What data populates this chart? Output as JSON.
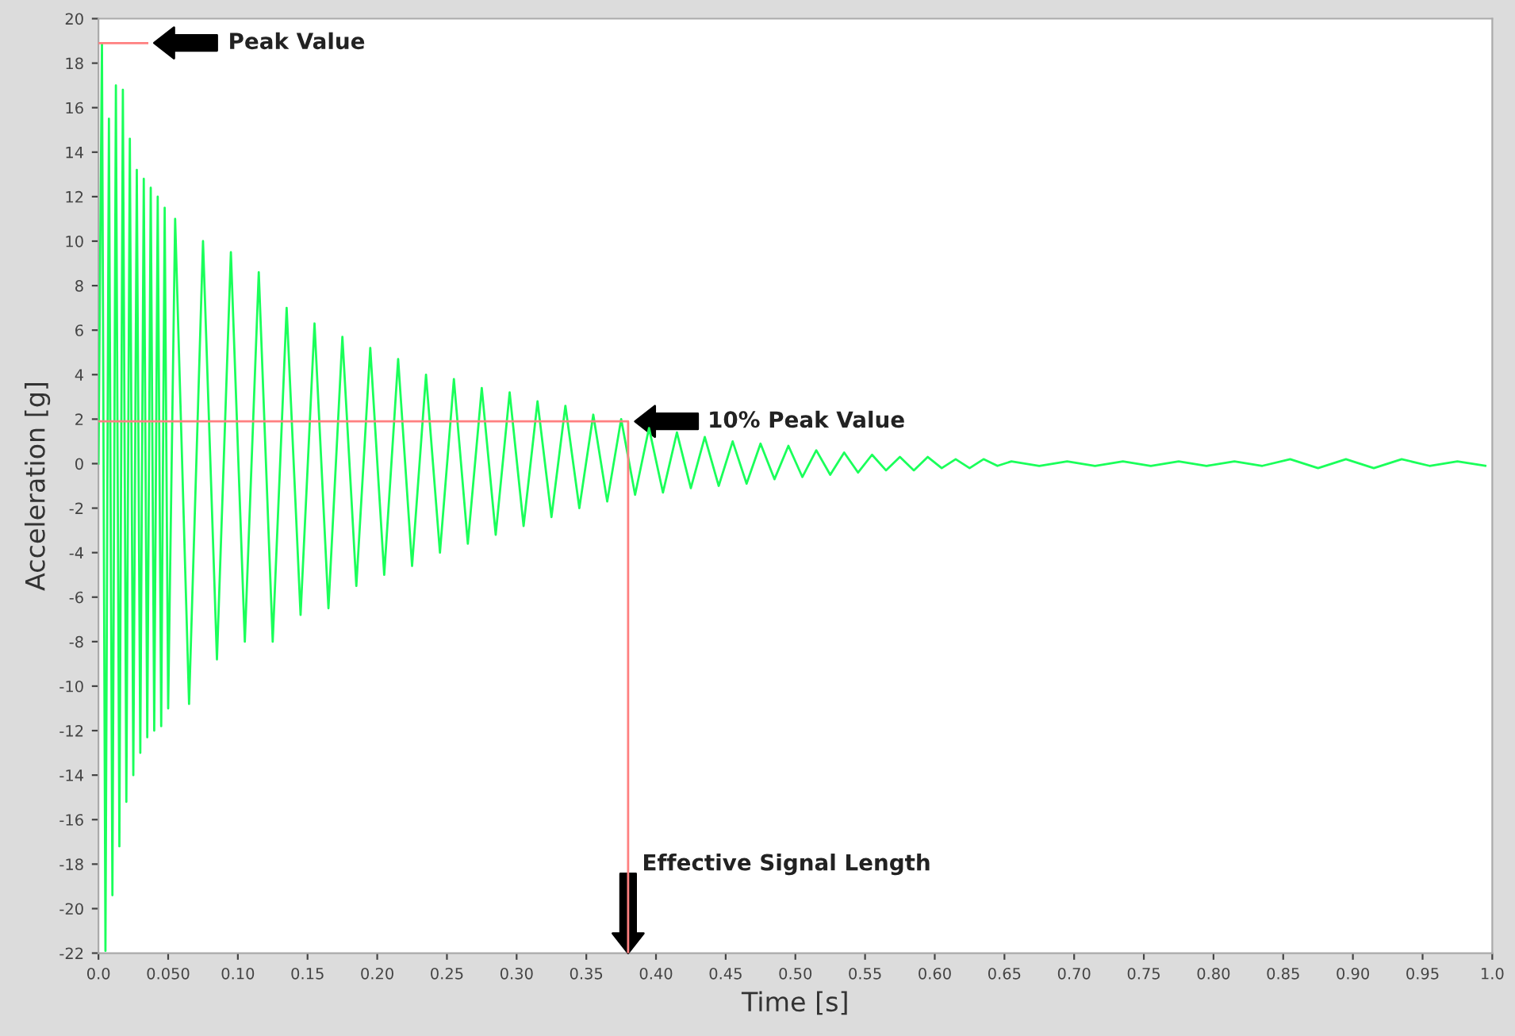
{
  "chart_data": {
    "type": "line",
    "xlabel": "Time [s]",
    "ylabel": "Acceleration [g]",
    "xlim": [
      0,
      1.0
    ],
    "ylim": [
      -22,
      20
    ],
    "xticks": [
      {
        "value": 0,
        "label": "0.0"
      },
      {
        "value": 0.05,
        "label": "0.050"
      },
      {
        "value": 0.1,
        "label": "0.10"
      },
      {
        "value": 0.15,
        "label": "0.15"
      },
      {
        "value": 0.2,
        "label": "0.20"
      },
      {
        "value": 0.25,
        "label": "0.25"
      },
      {
        "value": 0.3,
        "label": "0.30"
      },
      {
        "value": 0.35,
        "label": "0.35"
      },
      {
        "value": 0.4,
        "label": "0.40"
      },
      {
        "value": 0.45,
        "label": "0.45"
      },
      {
        "value": 0.5,
        "label": "0.50"
      },
      {
        "value": 0.55,
        "label": "0.55"
      },
      {
        "value": 0.6,
        "label": "0.60"
      },
      {
        "value": 0.65,
        "label": "0.65"
      },
      {
        "value": 0.7,
        "label": "0.70"
      },
      {
        "value": 0.75,
        "label": "0.75"
      },
      {
        "value": 0.8,
        "label": "0.80"
      },
      {
        "value": 0.85,
        "label": "0.85"
      },
      {
        "value": 0.9,
        "label": "0.90"
      },
      {
        "value": 0.95,
        "label": "0.95"
      },
      {
        "value": 1.0,
        "label": "1.0"
      }
    ],
    "yticks": [
      -22,
      -20,
      -18,
      -16,
      -14,
      -12,
      -10,
      -8,
      -6,
      -4,
      -2,
      0,
      2,
      4,
      6,
      8,
      10,
      12,
      14,
      16,
      18,
      20
    ],
    "grid": false,
    "legend": false,
    "marker": "none",
    "line_style": "solid",
    "series": [
      {
        "color": "#1aff5a",
        "x": [
          0,
          0.0025,
          0.005,
          0.0075,
          0.01,
          0.0125,
          0.015,
          0.0175,
          0.02,
          0.0225,
          0.025,
          0.0275,
          0.03,
          0.0325,
          0.035,
          0.0375,
          0.04,
          0.0425,
          0.045,
          0.0475,
          0.05,
          0.055,
          0.065,
          0.075,
          0.085,
          0.095,
          0.105,
          0.115,
          0.125,
          0.135,
          0.145,
          0.155,
          0.165,
          0.175,
          0.185,
          0.195,
          0.205,
          0.215,
          0.225,
          0.235,
          0.245,
          0.255,
          0.265,
          0.275,
          0.285,
          0.295,
          0.305,
          0.315,
          0.325,
          0.335,
          0.345,
          0.355,
          0.365,
          0.375,
          0.385,
          0.395,
          0.405,
          0.415,
          0.425,
          0.435,
          0.445,
          0.455,
          0.465,
          0.475,
          0.485,
          0.495,
          0.505,
          0.515,
          0.525,
          0.535,
          0.545,
          0.555,
          0.565,
          0.575,
          0.585,
          0.595,
          0.605,
          0.615,
          0.625,
          0.635,
          0.645,
          0.655,
          0.675,
          0.695,
          0.715,
          0.735,
          0.755,
          0.775,
          0.795,
          0.815,
          0.835,
          0.855,
          0.875,
          0.895,
          0.915,
          0.935,
          0.955,
          0.975,
          0.995
        ],
        "values": [
          0,
          18.9,
          -21.9,
          15.5,
          -19.4,
          17.0,
          -17.2,
          16.8,
          -15.2,
          14.6,
          -14.0,
          13.2,
          -13.0,
          12.8,
          -12.3,
          12.4,
          -12.0,
          12.0,
          -11.8,
          11.5,
          -11.0,
          11.0,
          -10.8,
          10.0,
          -8.8,
          9.5,
          -8.0,
          8.6,
          -8.0,
          7.0,
          -6.8,
          6.3,
          -6.5,
          5.7,
          -5.5,
          5.2,
          -5.0,
          4.7,
          -4.6,
          4.0,
          -4.0,
          3.8,
          -3.6,
          3.4,
          -3.2,
          3.2,
          -2.8,
          2.8,
          -2.4,
          2.6,
          -2.0,
          2.2,
          -1.7,
          2.0,
          -1.4,
          1.6,
          -1.3,
          1.4,
          -1.1,
          1.2,
          -1.0,
          1.0,
          -0.9,
          0.9,
          -0.7,
          0.8,
          -0.6,
          0.6,
          -0.5,
          0.5,
          -0.4,
          0.4,
          -0.3,
          0.3,
          -0.3,
          0.3,
          -0.2,
          0.2,
          -0.2,
          0.2,
          -0.1,
          0.1,
          -0.1,
          0.1,
          -0.1,
          0.1,
          -0.1,
          0.1,
          -0.1,
          0.1,
          -0.1,
          0.2,
          -0.2,
          0.2,
          -0.2,
          0.2,
          -0.1,
          0.1,
          -0.1
        ]
      },
      {
        "type": "line",
        "color": "#ff8080",
        "x": [
          0,
          0.035
        ],
        "values": [
          18.9,
          18.9
        ]
      },
      {
        "type": "line",
        "color": "#ff8080",
        "x": [
          0,
          0.38,
          0.38
        ],
        "values": [
          1.9,
          1.9,
          -22
        ]
      }
    ],
    "annotations": [
      "Peak Value",
      "10% Peak Value",
      "Effective Signal Length"
    ]
  }
}
